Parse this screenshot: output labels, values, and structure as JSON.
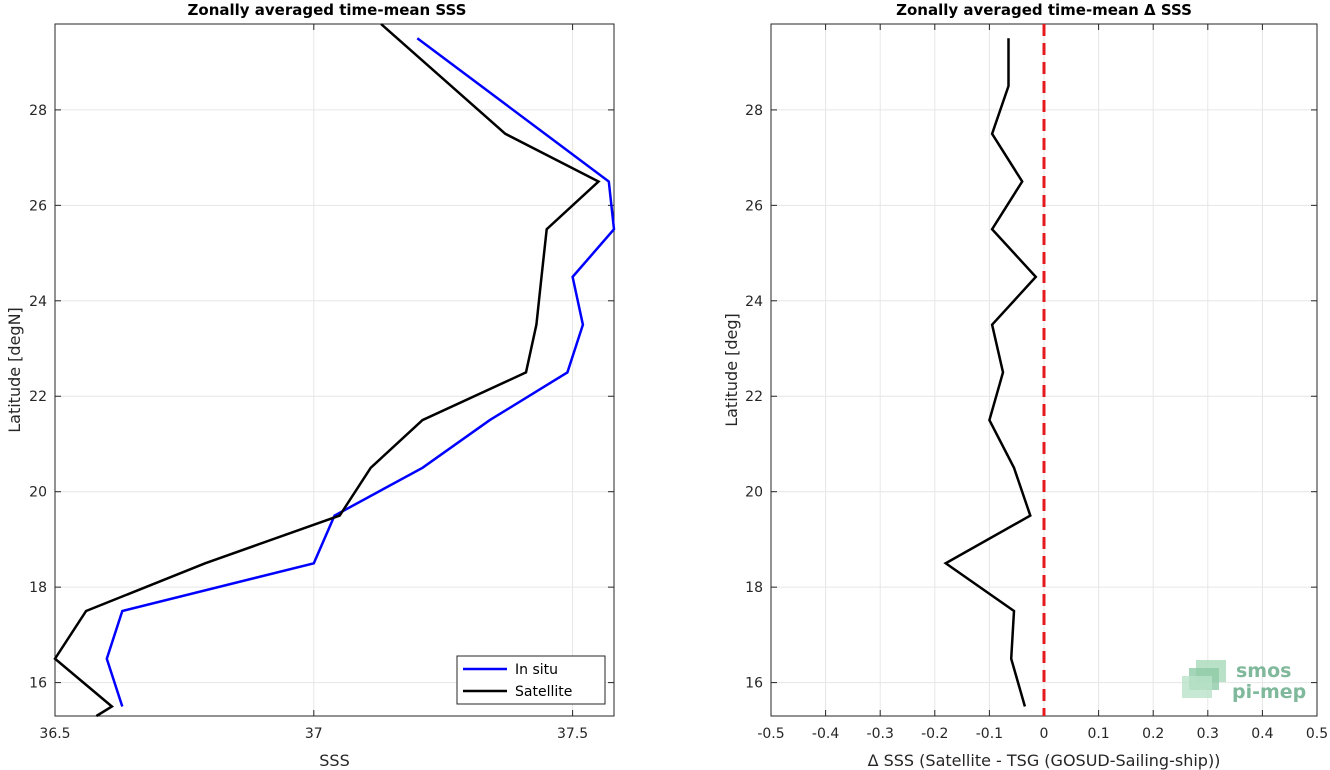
{
  "chart_data": [
    {
      "type": "line",
      "title": "Zonally averaged time-mean SSS",
      "xlabel": "SSS",
      "ylabel": "Latitude [degN]",
      "xlim": [
        36.5,
        37.58
      ],
      "ylim": [
        15.3,
        29.8
      ],
      "xticks": [
        36.5,
        37,
        37.5
      ],
      "xtick_labels": [
        "36.5",
        "37",
        "37.5"
      ],
      "yticks": [
        16,
        18,
        20,
        22,
        24,
        26,
        28
      ],
      "grid": true,
      "legend_position": "bottom-right",
      "series": [
        {
          "name": "In situ",
          "color": "#0000ff",
          "x": [
            36.63,
            36.6,
            36.63,
            37.0,
            37.04,
            37.21,
            37.34,
            37.49,
            37.52,
            37.5,
            37.58,
            37.57,
            37.2
          ],
          "y": [
            15.5,
            16.5,
            17.5,
            18.5,
            19.5,
            20.5,
            21.5,
            22.5,
            23.5,
            24.5,
            25.5,
            26.5,
            29.5
          ]
        },
        {
          "name": "Satellite",
          "color": "#000000",
          "x": [
            36.58,
            36.61,
            36.5,
            36.56,
            36.79,
            37.05,
            37.11,
            37.21,
            37.41,
            37.43,
            37.44,
            37.45,
            37.55,
            37.37,
            37.13
          ],
          "y": [
            15.3,
            15.5,
            16.5,
            17.5,
            18.5,
            19.5,
            20.5,
            21.5,
            22.5,
            23.5,
            24.5,
            25.5,
            26.5,
            27.5,
            29.8
          ]
        }
      ]
    },
    {
      "type": "line",
      "title": "Zonally averaged time-mean Δ SSS",
      "xlabel": "Δ SSS (Satellite - TSG (GOSUD-Sailing-ship))",
      "ylabel": "Latitude [deg]",
      "xlim": [
        -0.5,
        0.5
      ],
      "ylim": [
        15.3,
        29.8
      ],
      "xticks": [
        -0.5,
        -0.4,
        -0.3,
        -0.2,
        -0.1,
        0,
        0.1,
        0.2,
        0.3,
        0.4,
        0.5
      ],
      "xtick_labels": [
        "-0.5",
        "-0.4",
        "-0.3",
        "-0.2",
        "-0.1",
        "0",
        "0.1",
        "0.2",
        "0.3",
        "0.4",
        "0.5"
      ],
      "yticks": [
        16,
        18,
        20,
        22,
        24,
        26,
        28
      ],
      "grid": true,
      "reference_line": {
        "x": 0,
        "color": "#e41a1c",
        "style": "dashed"
      },
      "series": [
        {
          "color": "#000000",
          "x": [
            -0.035,
            -0.06,
            -0.055,
            -0.18,
            -0.025,
            -0.055,
            -0.1,
            -0.075,
            -0.095,
            -0.015,
            -0.095,
            -0.04,
            -0.095,
            -0.065,
            -0.065
          ],
          "y": [
            15.5,
            16.5,
            17.5,
            18.5,
            19.5,
            20.5,
            21.5,
            22.5,
            23.5,
            24.5,
            25.5,
            26.5,
            27.5,
            28.5,
            29.5
          ]
        }
      ]
    }
  ],
  "logo": {
    "line1": "smos",
    "line2": "pi-mep"
  }
}
